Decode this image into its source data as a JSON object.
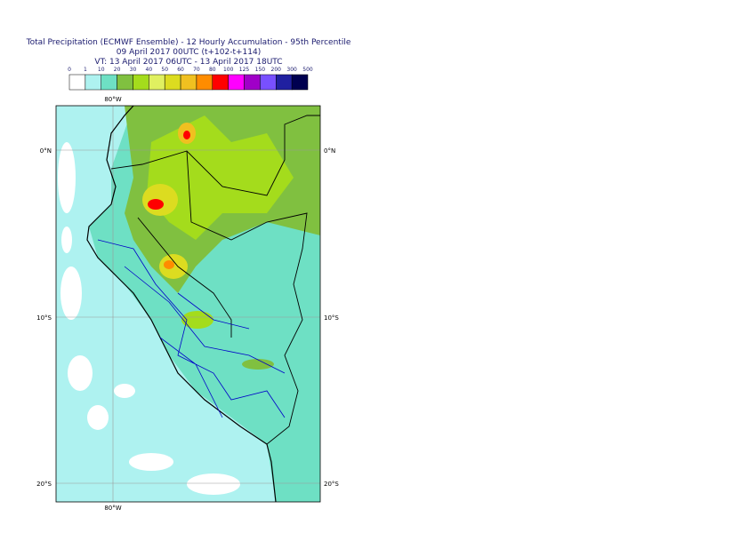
{
  "header": {
    "lines": [
      "Total Precipitation (ECMWF Ensemble) - 12 Hourly Accumulation - 95th Percentile",
      "09 April 2017 00UTC (t+102-t+114)",
      "VT: 13 April 2017 06UTC - 13 April 2017 18UTC"
    ]
  },
  "legend": {
    "labels": [
      "0",
      "1",
      "10",
      "20",
      "30",
      "40",
      "50",
      "60",
      "70",
      "80",
      "100",
      "125",
      "150",
      "200",
      "300",
      "500"
    ],
    "colors": [
      "#ffffff",
      "#aef2f0",
      "#6ee0c4",
      "#80c040",
      "#a4dc1c",
      "#e0f060",
      "#dcdc20",
      "#f0c020",
      "#ff8c00",
      "#ff0000",
      "#ff00ff",
      "#a000c8",
      "#7850ff",
      "#2020a0",
      "#000050"
    ]
  },
  "map": {
    "lon_labels": [
      "80°W",
      "80°W"
    ],
    "lat_labels": [
      "0°N",
      "0°N",
      "10°S",
      "10°S",
      "20°S",
      "20°S"
    ]
  }
}
